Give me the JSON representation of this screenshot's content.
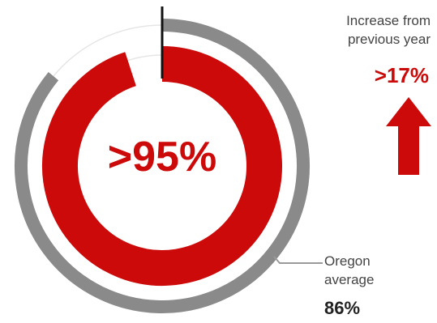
{
  "chart_data": {
    "type": "pie",
    "center_label": ">95%",
    "series": [
      {
        "value": 95,
        "color": "#cc0a0a"
      },
      {
        "value": 86,
        "color": "#8a8a8a"
      }
    ],
    "ylim": [
      0,
      100
    ]
  },
  "increase": {
    "label": "Increase from previous year",
    "value": ">17%",
    "arrow_icon": "arrow-up-icon",
    "color": "#cc0a0a"
  },
  "oregon": {
    "label": "Oregon average",
    "value": "86%",
    "color": "#8a8a8a"
  }
}
